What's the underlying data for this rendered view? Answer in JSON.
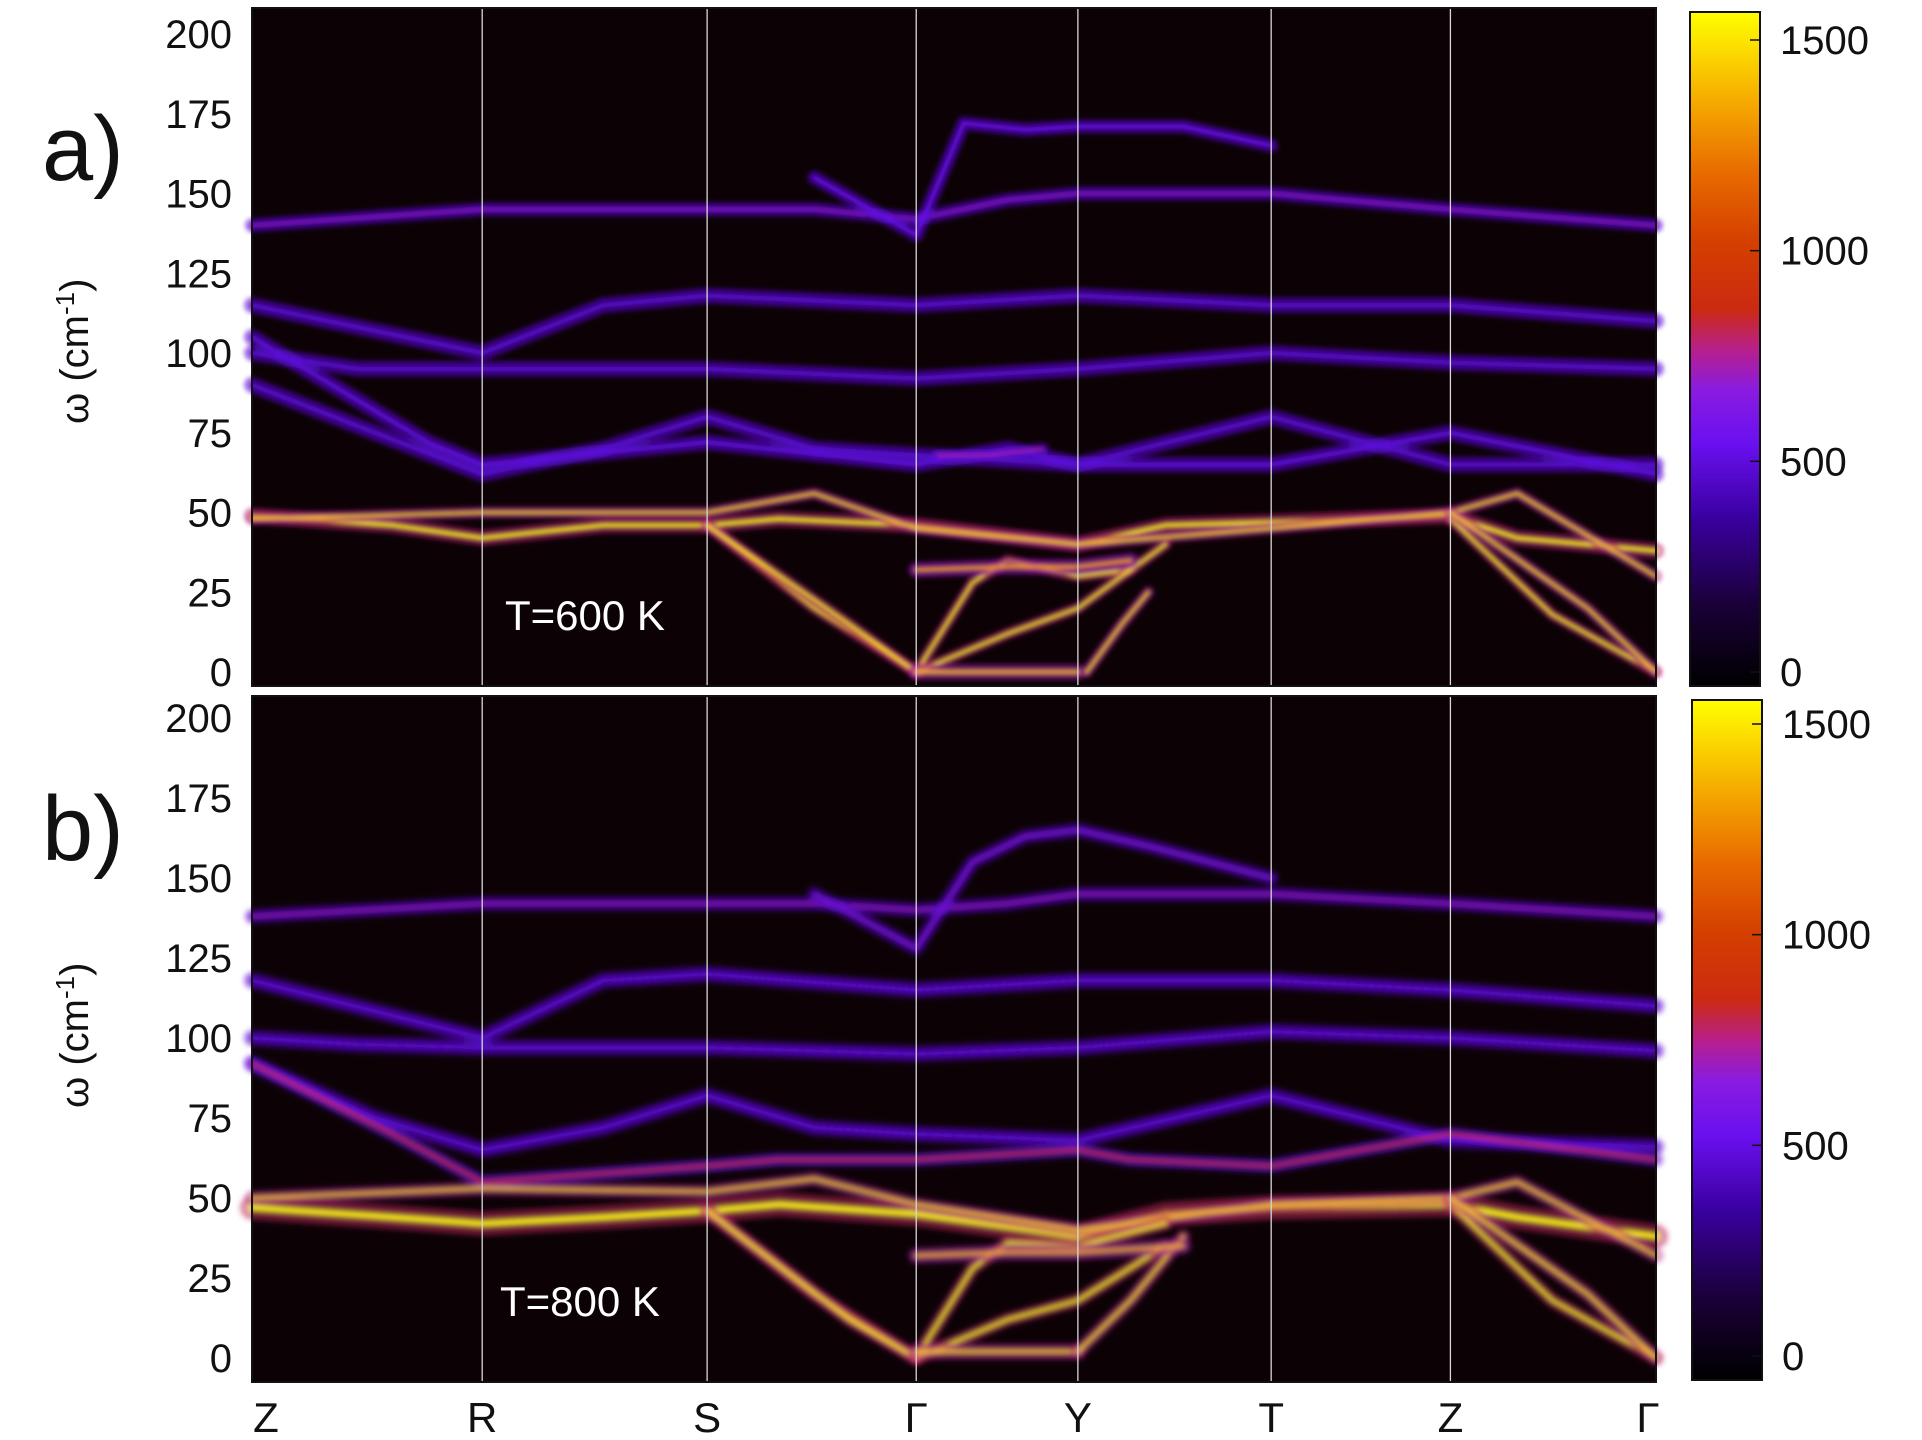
{
  "chart_data": [
    {
      "type": "heatmap",
      "panel_label": "a)",
      "annotation": "T=600 K",
      "ylabel": "ω (cm-1)",
      "ylabel_main": "ω (cm",
      "ylabel_sup": "-1",
      "ylabel_close": ")",
      "y_ticks": [
        0,
        25,
        50,
        75,
        100,
        125,
        150,
        175,
        200
      ],
      "ylim": [
        0,
        205
      ],
      "colorbar": {
        "ticks": [
          0,
          500,
          1000,
          1500
        ],
        "range": [
          0,
          1550
        ]
      },
      "kpath": [
        "Z",
        "R",
        "S",
        "Γ",
        "Y",
        "T",
        "Z",
        "Γ"
      ],
      "kpos": [
        0,
        1.31,
        2.59,
        3.78,
        4.7,
        5.8,
        6.82,
        7.99
      ],
      "bands": [
        {
          "intensity": 0.4,
          "width": 3.5,
          "points": [
            [
              0,
              140
            ],
            [
              1.31,
              145
            ],
            [
              2.59,
              145
            ],
            [
              3.2,
              145
            ],
            [
              3.78,
              142
            ],
            [
              4.3,
              148
            ],
            [
              4.7,
              150
            ],
            [
              5.8,
              150
            ],
            [
              6.82,
              145
            ],
            [
              7.99,
              140
            ]
          ]
        },
        {
          "intensity": 0.35,
          "width": 3.5,
          "points": [
            [
              3.2,
              155
            ],
            [
              3.78,
              137
            ],
            [
              4.05,
              172
            ],
            [
              4.4,
              170
            ],
            [
              4.7,
              171
            ],
            [
              5.3,
              171
            ],
            [
              5.8,
              165
            ]
          ]
        },
        {
          "intensity": 0.3,
          "width": 4,
          "points": [
            [
              0,
              115
            ],
            [
              1.31,
              100
            ],
            [
              2.0,
              115
            ],
            [
              2.59,
              118
            ],
            [
              3.78,
              115
            ],
            [
              4.7,
              118
            ],
            [
              5.8,
              115
            ],
            [
              6.82,
              115
            ],
            [
              7.99,
              110
            ]
          ]
        },
        {
          "intensity": 0.3,
          "width": 4,
          "points": [
            [
              0,
              100
            ],
            [
              0.6,
              95
            ],
            [
              1.31,
              95
            ],
            [
              2.59,
              95
            ],
            [
              3.78,
              92
            ],
            [
              4.7,
              95
            ],
            [
              5.8,
              100
            ],
            [
              6.82,
              97
            ],
            [
              7.99,
              95
            ]
          ]
        },
        {
          "intensity": 0.3,
          "width": 4,
          "points": [
            [
              0,
              90
            ],
            [
              0.7,
              75
            ],
            [
              1.31,
              62
            ],
            [
              2.0,
              70
            ],
            [
              2.59,
              80
            ],
            [
              3.2,
              70
            ],
            [
              3.78,
              68
            ],
            [
              4.7,
              65
            ],
            [
              5.8,
              80
            ],
            [
              6.82,
              65
            ],
            [
              7.99,
              65
            ]
          ]
        },
        {
          "intensity": 0.32,
          "width": 4,
          "points": [
            [
              0,
              105
            ],
            [
              1.0,
              72
            ],
            [
              1.31,
              65
            ],
            [
              2.59,
              72
            ],
            [
              3.78,
              65
            ],
            [
              4.3,
              70
            ],
            [
              4.7,
              65
            ],
            [
              5.8,
              65
            ],
            [
              6.82,
              75
            ],
            [
              7.99,
              62
            ]
          ]
        },
        {
          "intensity": 0.45,
          "width": 3,
          "points": [
            [
              3.9,
              68
            ],
            [
              4.2,
              68
            ],
            [
              4.5,
              70
            ]
          ]
        },
        {
          "intensity": 0.95,
          "width": 4,
          "points": [
            [
              0,
              49
            ],
            [
              0.8,
              46
            ],
            [
              1.31,
              42
            ],
            [
              2.0,
              46
            ],
            [
              2.59,
              46
            ],
            [
              3.0,
              48
            ],
            [
              3.78,
              46
            ],
            [
              4.7,
              40
            ],
            [
              5.2,
              46
            ],
            [
              5.8,
              47
            ],
            [
              6.82,
              49
            ],
            [
              7.2,
              42
            ],
            [
              7.99,
              38
            ]
          ]
        },
        {
          "intensity": 0.9,
          "width": 3,
          "points": [
            [
              0,
              48
            ],
            [
              1.31,
              50
            ],
            [
              2.59,
              50
            ],
            [
              3.2,
              56
            ],
            [
              3.78,
              45
            ],
            [
              4.7,
              40
            ],
            [
              5.8,
              45
            ],
            [
              6.82,
              50
            ],
            [
              7.2,
              56
            ],
            [
              7.99,
              30
            ]
          ]
        },
        {
          "intensity": 0.95,
          "width": 3,
          "points": [
            [
              2.59,
              46
            ],
            [
              3.2,
              20
            ],
            [
              3.78,
              0
            ]
          ]
        },
        {
          "intensity": 0.95,
          "width": 3,
          "points": [
            [
              2.59,
              46
            ],
            [
              3.4,
              15
            ],
            [
              3.78,
              0
            ]
          ]
        },
        {
          "intensity": 0.95,
          "width": 3,
          "points": [
            [
              6.82,
              48
            ],
            [
              7.4,
              18
            ],
            [
              7.99,
              0
            ]
          ]
        },
        {
          "intensity": 0.9,
          "width": 3,
          "points": [
            [
              6.82,
              50
            ],
            [
              7.6,
              20
            ],
            [
              7.99,
              0
            ]
          ]
        },
        {
          "intensity": 0.95,
          "width": 3,
          "points": [
            [
              3.78,
              0
            ],
            [
              4.1,
              28
            ],
            [
              4.3,
              35
            ],
            [
              4.7,
              30
            ],
            [
              5.0,
              32
            ]
          ]
        },
        {
          "intensity": 0.95,
          "width": 3,
          "points": [
            [
              3.78,
              0
            ],
            [
              4.3,
              12
            ],
            [
              4.7,
              20
            ],
            [
              5.2,
              40
            ]
          ]
        },
        {
          "intensity": 0.85,
          "width": 4,
          "points": [
            [
              3.78,
              0
            ],
            [
              4.7,
              0
            ]
          ]
        },
        {
          "intensity": 0.9,
          "width": 3,
          "points": [
            [
              4.75,
              0
            ],
            [
              4.95,
              15
            ],
            [
              5.1,
              25
            ]
          ]
        },
        {
          "intensity": 0.8,
          "width": 4,
          "points": [
            [
              3.78,
              32
            ],
            [
              4.3,
              33
            ],
            [
              4.7,
              33
            ],
            [
              5.0,
              35
            ]
          ]
        }
      ]
    },
    {
      "type": "heatmap",
      "panel_label": "b)",
      "annotation": "T=800 K",
      "ylabel": "ω (cm-1)",
      "ylabel_main": "ω (cm",
      "ylabel_sup": "-1",
      "ylabel_close": ")",
      "y_ticks": [
        0,
        25,
        50,
        75,
        100,
        125,
        150,
        175,
        200
      ],
      "ylim": [
        0,
        205
      ],
      "colorbar": {
        "ticks": [
          0,
          500,
          1000,
          1500
        ],
        "range": [
          0,
          1550
        ]
      },
      "kpath": [
        "Z",
        "R",
        "S",
        "Γ",
        "Y",
        "T",
        "Z",
        "Γ"
      ],
      "kpos": [
        0,
        1.31,
        2.59,
        3.78,
        4.7,
        5.8,
        6.82,
        7.99
      ],
      "bands": [
        {
          "intensity": 0.42,
          "width": 3.5,
          "points": [
            [
              0,
              138
            ],
            [
              1.31,
              142
            ],
            [
              2.59,
              142
            ],
            [
              3.2,
              142
            ],
            [
              3.78,
              140
            ],
            [
              4.3,
              142
            ],
            [
              4.7,
              145
            ],
            [
              5.8,
              145
            ],
            [
              6.82,
              142
            ],
            [
              7.99,
              138
            ]
          ]
        },
        {
          "intensity": 0.38,
          "width": 3.5,
          "points": [
            [
              3.2,
              145
            ],
            [
              3.78,
              128
            ],
            [
              4.1,
              155
            ],
            [
              4.4,
              163
            ],
            [
              4.7,
              165
            ],
            [
              5.1,
              160
            ],
            [
              5.8,
              150
            ]
          ]
        },
        {
          "intensity": 0.32,
          "width": 4,
          "points": [
            [
              0,
              118
            ],
            [
              1.31,
              100
            ],
            [
              2.0,
              118
            ],
            [
              2.59,
              120
            ],
            [
              3.78,
              115
            ],
            [
              4.7,
              118
            ],
            [
              5.8,
              118
            ],
            [
              6.82,
              115
            ],
            [
              7.99,
              110
            ]
          ]
        },
        {
          "intensity": 0.32,
          "width": 4,
          "points": [
            [
              0,
              100
            ],
            [
              0.6,
              98
            ],
            [
              1.31,
              97
            ],
            [
              2.59,
              97
            ],
            [
              3.78,
              95
            ],
            [
              4.7,
              97
            ],
            [
              5.8,
              102
            ],
            [
              6.82,
              100
            ],
            [
              7.99,
              96
            ]
          ]
        },
        {
          "intensity": 0.32,
          "width": 4,
          "points": [
            [
              0,
              92
            ],
            [
              0.7,
              75
            ],
            [
              1.31,
              65
            ],
            [
              2.0,
              72
            ],
            [
              2.59,
              82
            ],
            [
              3.2,
              72
            ],
            [
              3.78,
              70
            ],
            [
              4.7,
              68
            ],
            [
              5.8,
              82
            ],
            [
              6.82,
              68
            ],
            [
              7.99,
              66
            ]
          ]
        },
        {
          "intensity": 0.6,
          "width": 3.5,
          "points": [
            [
              0,
              92
            ],
            [
              0.8,
              70
            ],
            [
              1.31,
              55
            ],
            [
              2.59,
              60
            ],
            [
              3.0,
              62
            ],
            [
              3.78,
              62
            ],
            [
              4.7,
              65
            ],
            [
              5.0,
              62
            ],
            [
              5.8,
              60
            ],
            [
              6.82,
              70
            ],
            [
              7.99,
              62
            ]
          ]
        },
        {
          "intensity": 0.98,
          "width": 6,
          "points": [
            [
              0,
              47
            ],
            [
              0.8,
              44
            ],
            [
              1.31,
              42
            ],
            [
              2.0,
              44
            ],
            [
              2.59,
              46
            ],
            [
              3.0,
              48
            ],
            [
              3.78,
              45
            ],
            [
              4.7,
              38
            ],
            [
              5.2,
              45
            ],
            [
              5.8,
              47
            ],
            [
              6.82,
              48
            ],
            [
              7.2,
              44
            ],
            [
              7.99,
              38
            ]
          ]
        },
        {
          "intensity": 0.9,
          "width": 3.5,
          "points": [
            [
              0,
              50
            ],
            [
              1.31,
              53
            ],
            [
              2.59,
              52
            ],
            [
              3.2,
              56
            ],
            [
              3.78,
              48
            ],
            [
              4.7,
              40
            ],
            [
              5.8,
              48
            ],
            [
              6.82,
              50
            ],
            [
              7.2,
              55
            ],
            [
              7.99,
              32
            ]
          ]
        },
        {
          "intensity": 0.97,
          "width": 3.5,
          "points": [
            [
              2.59,
              46
            ],
            [
              3.2,
              20
            ],
            [
              3.78,
              0
            ]
          ]
        },
        {
          "intensity": 0.95,
          "width": 3.5,
          "points": [
            [
              2.59,
              46
            ],
            [
              3.4,
              12
            ],
            [
              3.78,
              0
            ]
          ]
        },
        {
          "intensity": 0.97,
          "width": 3.5,
          "points": [
            [
              6.82,
              48
            ],
            [
              7.4,
              18
            ],
            [
              7.99,
              0
            ]
          ]
        },
        {
          "intensity": 0.92,
          "width": 3.5,
          "points": [
            [
              6.82,
              50
            ],
            [
              7.6,
              20
            ],
            [
              7.99,
              0
            ]
          ]
        },
        {
          "intensity": 0.97,
          "width": 3.5,
          "points": [
            [
              3.78,
              0
            ],
            [
              4.1,
              28
            ],
            [
              4.3,
              36
            ],
            [
              4.7,
              35
            ],
            [
              5.2,
              42
            ]
          ]
        },
        {
          "intensity": 0.97,
          "width": 3.5,
          "points": [
            [
              3.78,
              0
            ],
            [
              4.3,
              12
            ],
            [
              4.7,
              18
            ],
            [
              5.2,
              35
            ]
          ]
        },
        {
          "intensity": 0.9,
          "width": 4,
          "points": [
            [
              3.78,
              2
            ],
            [
              4.7,
              2
            ]
          ]
        },
        {
          "intensity": 0.92,
          "width": 3.5,
          "points": [
            [
              4.7,
              2
            ],
            [
              5.0,
              18
            ],
            [
              5.3,
              38
            ]
          ]
        },
        {
          "intensity": 0.85,
          "width": 4,
          "points": [
            [
              3.78,
              32
            ],
            [
              4.3,
              33
            ],
            [
              4.7,
              33
            ],
            [
              5.3,
              35
            ]
          ]
        }
      ]
    }
  ]
}
